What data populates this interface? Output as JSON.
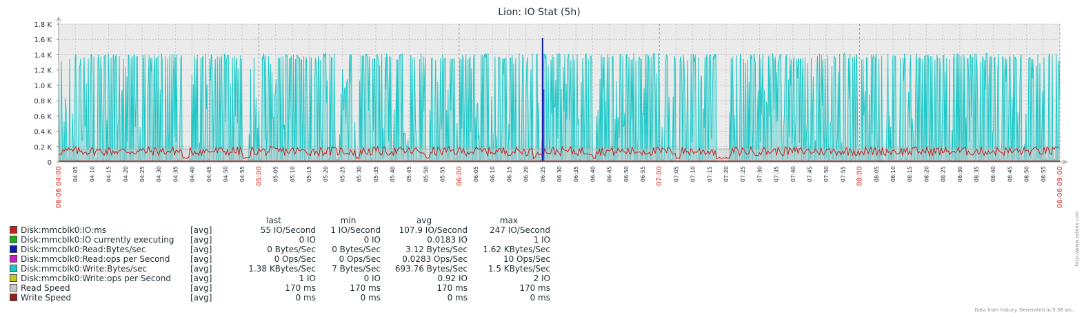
{
  "chart_data": {
    "type": "area",
    "title": "Lion: IO Stat (5h)",
    "ylim": [
      0,
      1800
    ],
    "y_ticks": [
      {
        "value": 0,
        "label": "0"
      },
      {
        "value": 200,
        "label": "0.2 K"
      },
      {
        "value": 400,
        "label": "0.4 K"
      },
      {
        "value": 600,
        "label": "0.6 K"
      },
      {
        "value": 800,
        "label": "0.8 K"
      },
      {
        "value": 1000,
        "label": "1.0 K"
      },
      {
        "value": 1200,
        "label": "1.2 K"
      },
      {
        "value": 1400,
        "label": "1.4 K"
      },
      {
        "value": 1600,
        "label": "1.6 K"
      },
      {
        "value": 1800,
        "label": "1.8 K"
      }
    ],
    "x_start_label": "06-06 04:00",
    "x_end_label": "06-06 09:00",
    "x_minor_labels": [
      "04:05",
      "04:10",
      "04:15",
      "04:20",
      "04:25",
      "04:30",
      "04:35",
      "04:40",
      "04:45",
      "04:50",
      "04:55",
      "05:00",
      "05:05",
      "05:10",
      "05:15",
      "05:20",
      "05:25",
      "05:30",
      "05:35",
      "05:40",
      "05:45",
      "05:50",
      "05:55",
      "06:00",
      "06:05",
      "06:10",
      "06:15",
      "06:20",
      "06:25",
      "06:30",
      "06:35",
      "06:40",
      "06:45",
      "06:50",
      "06:55",
      "07:00",
      "07:05",
      "07:10",
      "07:15",
      "07:20",
      "07:25",
      "07:30",
      "07:35",
      "07:40",
      "07:45",
      "07:50",
      "07:55",
      "08:00",
      "08:05",
      "08:10",
      "08:15",
      "08:20",
      "08:25",
      "08:30",
      "08:35",
      "08:40",
      "08:45",
      "08:50",
      "08:55"
    ],
    "x_major_labels": [
      "05:00",
      "06:00",
      "07:00",
      "08:00"
    ],
    "grid": true,
    "series": [
      {
        "name": "Disk:mmcblk0:IO:ms",
        "color": "#c8211c"
      },
      {
        "name": "Disk:mmcblk0:IO currently executing",
        "color": "#1eaa1e"
      },
      {
        "name": "Disk:mmcblk0:Read:Bytes/sec",
        "color": "#0f1ab4"
      },
      {
        "name": "Disk:mmcblk0:Read:ops per Second",
        "color": "#c81ec8"
      },
      {
        "name": "Disk:mmcblk0:Write:Bytes/sec",
        "color": "#1ec8c8"
      },
      {
        "name": "Disk:mmcblk0:Write:ops per Second",
        "color": "#c8c81e"
      },
      {
        "name": "Read Speed",
        "color": "#c8c8c8"
      },
      {
        "name": "Write Speed",
        "color": "#961e1e"
      }
    ],
    "idle_intervals": [
      [
        "04:37",
        "04:39"
      ],
      [
        "04:55",
        "04:57"
      ],
      [
        "05:29",
        "05:30"
      ],
      [
        "05:50",
        "05:51"
      ],
      [
        "06:22",
        "06:23"
      ],
      [
        "06:40",
        "06:41"
      ],
      [
        "07:05",
        "07:06"
      ],
      [
        "07:17",
        "07:21"
      ]
    ],
    "read_spike": {
      "time": "06:25",
      "value": 1620
    }
  },
  "legend": {
    "headers": {
      "last": "last",
      "min": "min",
      "avg": "avg",
      "max": "max"
    },
    "rows": [
      {
        "name": "Disk:mmcblk0:IO:ms",
        "fn": "[avg]",
        "last": "55 IO/Second",
        "min": "1 IO/Second",
        "avg": "107.9 IO/Second",
        "max": "247 IO/Second"
      },
      {
        "name": "Disk:mmcblk0:IO currently executing",
        "fn": "[avg]",
        "last": "0 IO",
        "min": "0 IO",
        "avg": "0.0183 IO",
        "max": "1 IO"
      },
      {
        "name": "Disk:mmcblk0:Read:Bytes/sec",
        "fn": "[avg]",
        "last": "0 Bytes/Sec",
        "min": "0 Bytes/Sec",
        "avg": "3.12 Bytes/Sec",
        "max": "1.62 KBytes/Sec"
      },
      {
        "name": "Disk:mmcblk0:Read:ops per Second",
        "fn": "[avg]",
        "last": "0 Ops/Sec",
        "min": "0 Ops/Sec",
        "avg": "0.0283 Ops/Sec",
        "max": "10 Ops/Sec"
      },
      {
        "name": "Disk:mmcblk0:Write:Bytes/sec",
        "fn": "[avg]",
        "last": "1.38 KBytes/Sec",
        "min": "7 Bytes/Sec",
        "avg": "693.76 Bytes/Sec",
        "max": "1.5 KBytes/Sec"
      },
      {
        "name": "Disk:mmcblk0:Write:ops per Second",
        "fn": "[avg]",
        "last": "1 IO",
        "min": "0 IO",
        "avg": "0.92 IO",
        "max": "2 IO"
      },
      {
        "name": "Read Speed",
        "fn": "[avg]",
        "last": "170 ms",
        "min": "170 ms",
        "avg": "170 ms",
        "max": "170 ms"
      },
      {
        "name": "Write Speed",
        "fn": "[avg]",
        "last": "0 ms",
        "min": "0 ms",
        "avg": "0 ms",
        "max": "0 ms"
      }
    ]
  },
  "footer_text": "Data from history. Generated in 5.38 sec.",
  "watermark_text": "http://www.zabbix.com"
}
